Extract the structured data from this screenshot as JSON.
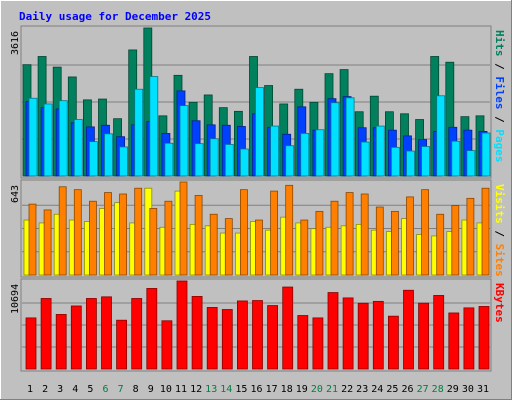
{
  "chart_data": {
    "type": "bar",
    "title": "Daily usage for December 2025",
    "days": [
      "1",
      "2",
      "3",
      "4",
      "5",
      "6",
      "7",
      "8",
      "9",
      "10",
      "11",
      "12",
      "13",
      "14",
      "15",
      "16",
      "17",
      "18",
      "19",
      "20",
      "21",
      "22",
      "23",
      "24",
      "25",
      "26",
      "27",
      "28",
      "29",
      "30",
      "31"
    ],
    "weekend_days": [
      "6",
      "7",
      "13",
      "14",
      "20",
      "21",
      "27",
      "28"
    ],
    "panels": {
      "hits": {
        "ymax_label": "3616",
        "ymax": 3616,
        "series": [
          {
            "name": "Hits",
            "color": "#00805c",
            "values": [
              2720,
              2920,
              2660,
              2420,
              1860,
              1880,
              1400,
              3080,
              3616,
              1470,
              2460,
              1800,
              1980,
              1670,
              1580,
              2920,
              2210,
              1760,
              2120,
              1800,
              2500,
              2600,
              1570,
              1950,
              1570,
              1520,
              1380,
              2920,
              2780,
              1450,
              1470
            ]
          },
          {
            "name": "Files",
            "color": "#0040ff",
            "values": [
              1820,
              1670,
              1640,
              1300,
              1200,
              1240,
              960,
              1250,
              1330,
              1040,
              2080,
              1350,
              1250,
              1240,
              1210,
              1520,
              1190,
              1020,
              1690,
              1120,
              1890,
              1940,
              1180,
              1180,
              1120,
              980,
              890,
              1090,
              1190,
              1120,
              1090
            ]
          },
          {
            "name": "Pages",
            "color": "#00e0ff",
            "values": [
              1900,
              1760,
              1840,
              1380,
              840,
              1030,
              710,
              2120,
              2430,
              800,
              1720,
              790,
              910,
              770,
              660,
              2160,
              1220,
              740,
              1040,
              1130,
              1790,
              1910,
              830,
              1220,
              700,
              610,
              720,
              1960,
              850,
              620,
              1050
            ]
          }
        ],
        "legend": [
          {
            "text": "Pages",
            "color": "#00e0ff"
          },
          {
            "text": "Files",
            "color": "#0040ff"
          },
          {
            "text": "Hits",
            "color": "#00805c"
          }
        ]
      },
      "visits": {
        "ymax_label": "643",
        "ymax": 643,
        "series": [
          {
            "name": "Visits",
            "color": "#ffff00",
            "values": [
              380,
              360,
              420,
              380,
              370,
              460,
              500,
              360,
              600,
              330,
              580,
              350,
              340,
              290,
              290,
              370,
              310,
              400,
              360,
              320,
              330,
              340,
              350,
              310,
              300,
              390,
              280,
              270,
              300,
              380,
              360
            ]
          },
          {
            "name": "Sites",
            "color": "#ff8000",
            "values": [
              490,
              450,
              610,
              590,
              510,
              570,
              560,
              600,
              460,
              510,
              643,
              550,
              420,
              390,
              590,
              380,
              580,
              620,
              380,
              440,
              510,
              570,
              560,
              470,
              440,
              540,
              590,
              420,
              480,
              530,
              600
            ]
          }
        ],
        "legend": [
          {
            "text": "Sites",
            "color": "#ff8000"
          },
          {
            "text": "Visits",
            "color": "#ffff00"
          }
        ]
      },
      "kbytes": {
        "ymax_label": "10694",
        "ymax": 10694,
        "series": [
          {
            "name": "KBytes",
            "color": "#ff0000",
            "values": [
              6210,
              8570,
              6630,
              7660,
              8570,
              8770,
              5930,
              8570,
              9790,
              5860,
              10694,
              8820,
              7480,
              7230,
              8270,
              8320,
              7710,
              9960,
              6500,
              6210,
              9290,
              8640,
              7990,
              8220,
              6420,
              9570,
              8000,
              8940,
              6810,
              7430,
              7600
            ]
          }
        ],
        "legend": [
          {
            "text": "KBytes",
            "color": "#ff0000"
          }
        ]
      }
    }
  }
}
